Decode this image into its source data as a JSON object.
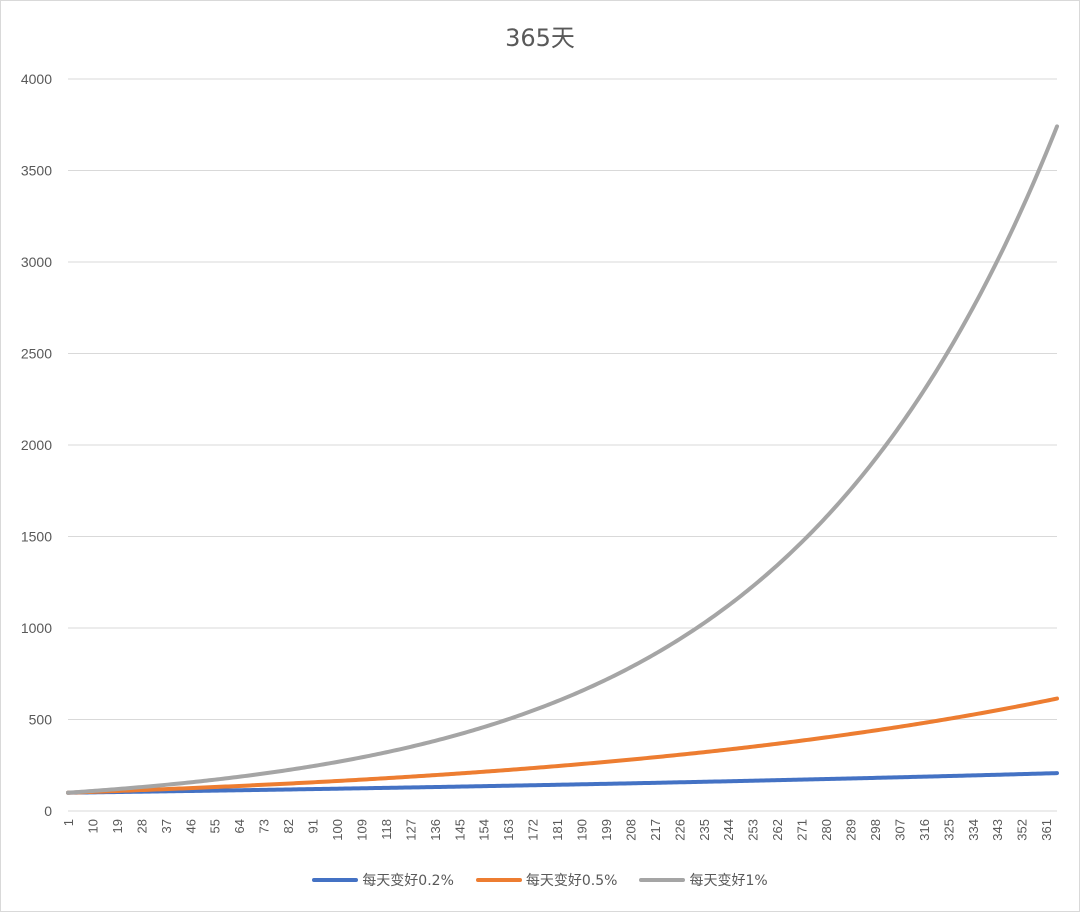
{
  "chart_data": {
    "type": "line",
    "title": "365天",
    "xlabel": "",
    "ylabel": "",
    "ylim": [
      0,
      4000
    ],
    "y_ticks": [
      0,
      500,
      1000,
      1500,
      2000,
      2500,
      3000,
      3500,
      4000
    ],
    "x_range": [
      1,
      365
    ],
    "x_tick_labels": [
      1,
      10,
      19,
      28,
      37,
      46,
      55,
      64,
      73,
      82,
      91,
      100,
      109,
      118,
      127,
      136,
      145,
      154,
      163,
      172,
      181,
      190,
      199,
      208,
      217,
      226,
      235,
      244,
      253,
      262,
      271,
      280,
      289,
      298,
      307,
      316,
      325,
      334,
      343,
      352,
      361
    ],
    "grid": true,
    "legend_position": "bottom",
    "series": [
      {
        "name": "每天变好0.2%",
        "color": "#4472c4",
        "rate": 0.002,
        "start": 100,
        "values_sampled": {
          "1": 100,
          "91": 120,
          "181": 143,
          "271": 172,
          "365": 207
        }
      },
      {
        "name": "每天变好0.5%",
        "color": "#ed7d31",
        "rate": 0.005,
        "start": 100,
        "values_sampled": {
          "1": 100,
          "91": 157,
          "181": 245,
          "271": 384,
          "365": 617
        }
      },
      {
        "name": "每天变好1%",
        "color": "#a5a5a5",
        "rate": 0.01,
        "start": 100,
        "values_sampled": {
          "1": 100,
          "91": 245,
          "181": 600,
          "271": 1471,
          "365": 3778
        }
      }
    ]
  }
}
